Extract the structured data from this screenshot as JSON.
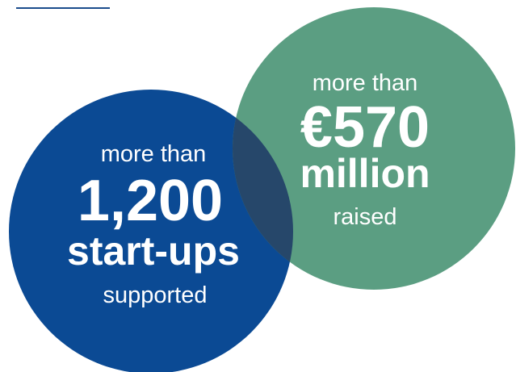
{
  "circles": [
    {
      "lines": [
        "more than",
        "1,200",
        "start-ups",
        "supported"
      ]
    },
    {
      "lines": [
        "more than",
        "€570",
        "million",
        "raised"
      ]
    }
  ]
}
